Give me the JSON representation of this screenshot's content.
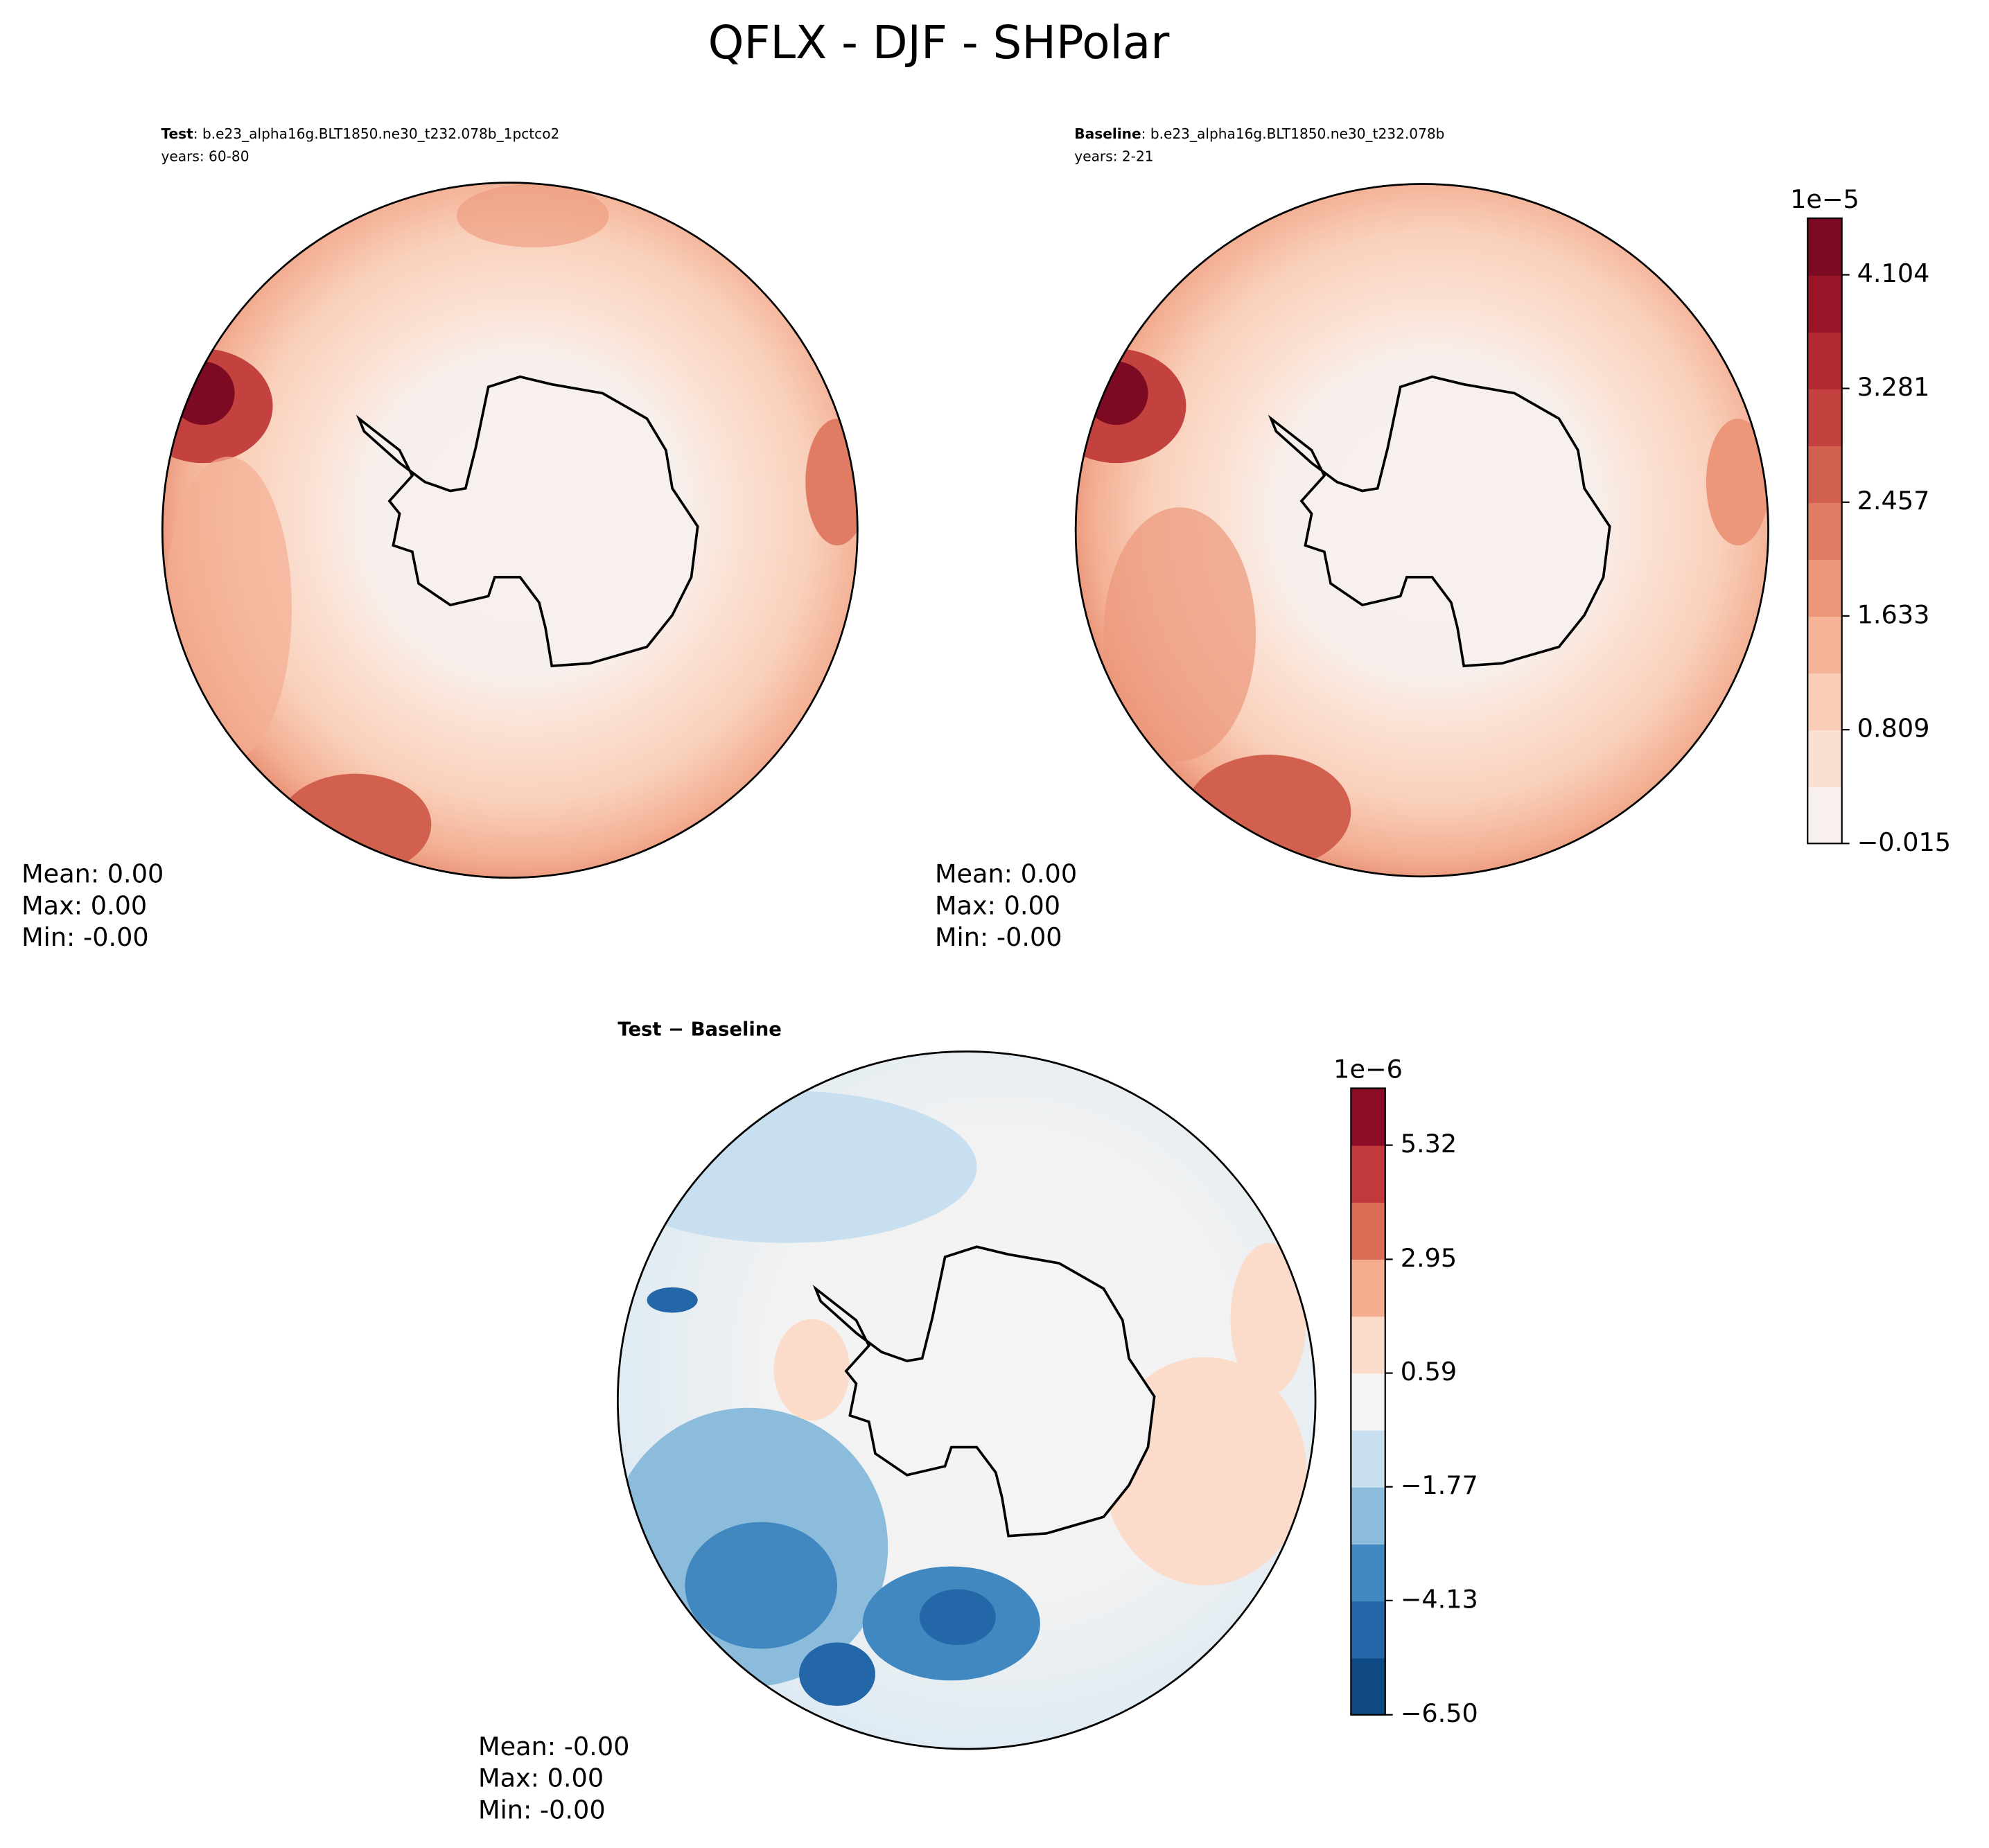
{
  "title": "QFLX - DJF - SHPolar",
  "panels": [
    {
      "label_bold": "Test",
      "label_rest": ": b.e23_alpha16g.BLT1850.ne30_t232.078b_1pctco2",
      "years": "years: 60-80",
      "stats": [
        "Mean:  0.00",
        "Max:  0.00",
        "Min: -0.00"
      ]
    },
    {
      "label_bold": "Baseline",
      "label_rest": ": b.e23_alpha16g.BLT1850.ne30_t232.078b",
      "years": "years: 2-21",
      "stats": [
        "Mean:  0.00",
        "Max:  0.00",
        "Min: -0.00"
      ]
    },
    {
      "label_bold": "Test − Baseline",
      "stats": [
        "Mean: -0.00",
        "Max:  0.00",
        "Min: -0.00"
      ]
    }
  ],
  "colorbars": [
    {
      "exponent": "1e−5",
      "lim": [
        -0.015,
        4.514
      ],
      "ticks": [
        {
          "value": -0.015,
          "label": "−0.015"
        },
        0.809,
        1.633,
        2.457,
        3.281,
        4.104
      ],
      "colors": [
        "#f7f0ed",
        "#fae0d3",
        "#f9cdb8",
        "#f5b498",
        "#ec977a",
        "#e07c64",
        "#d2604f",
        "#c3423f",
        "#b12a32",
        "#9b1529",
        "#7c0a22"
      ]
    },
    {
      "exponent": "1e−6",
      "lim": [
        -6.5,
        6.5
      ],
      "ticks": [
        {
          "value": -6.5,
          "label": "−6.50"
        },
        {
          "value": -4.13,
          "label": "−4.13"
        },
        {
          "value": -1.77,
          "label": "−1.77"
        },
        0.59,
        2.95,
        5.32
      ],
      "colors": [
        "#0f4a85",
        "#2367a8",
        "#4188c0",
        "#8cbcdb",
        "#c7dfee",
        "#f5f5f5",
        "#fbdccb",
        "#f5ad8e",
        "#dc6e58",
        "#c03a3b",
        "#8b0d25"
      ]
    }
  ]
}
